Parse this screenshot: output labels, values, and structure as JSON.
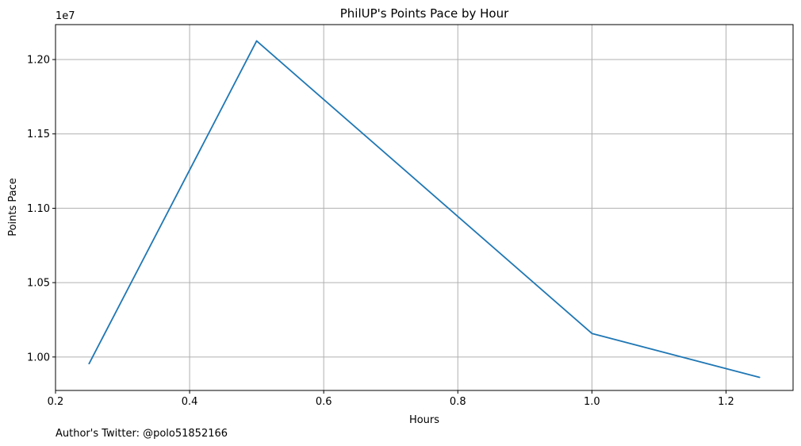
{
  "chart_data": {
    "type": "line",
    "title": "PhilUP's Points Pace by Hour",
    "xlabel": "Hours",
    "ylabel": "Points Pace",
    "y_offset_label": "1e7",
    "x": [
      0.25,
      0.5,
      1.0,
      1.25
    ],
    "series": [
      {
        "values": [
          9955000,
          12125000,
          10158000,
          9863000
        ],
        "color": "#1f77b4"
      }
    ],
    "xlim": [
      0.2,
      1.3
    ],
    "ylim": [
      9775000,
      12235000
    ],
    "x_ticks": [
      0.2,
      0.4,
      0.6,
      0.8,
      1.0,
      1.2
    ],
    "x_tick_labels": [
      "0.2",
      "0.4",
      "0.6",
      "0.8",
      "1.0",
      "1.2"
    ],
    "y_ticks": [
      10000000,
      10500000,
      11000000,
      11500000,
      12000000
    ],
    "y_tick_labels": [
      "1.00",
      "1.05",
      "1.10",
      "1.15",
      "1.20"
    ],
    "grid": true,
    "grid_color": "#b0b0b0",
    "legend": false
  },
  "footnote": "Author's Twitter: @polo51852166"
}
